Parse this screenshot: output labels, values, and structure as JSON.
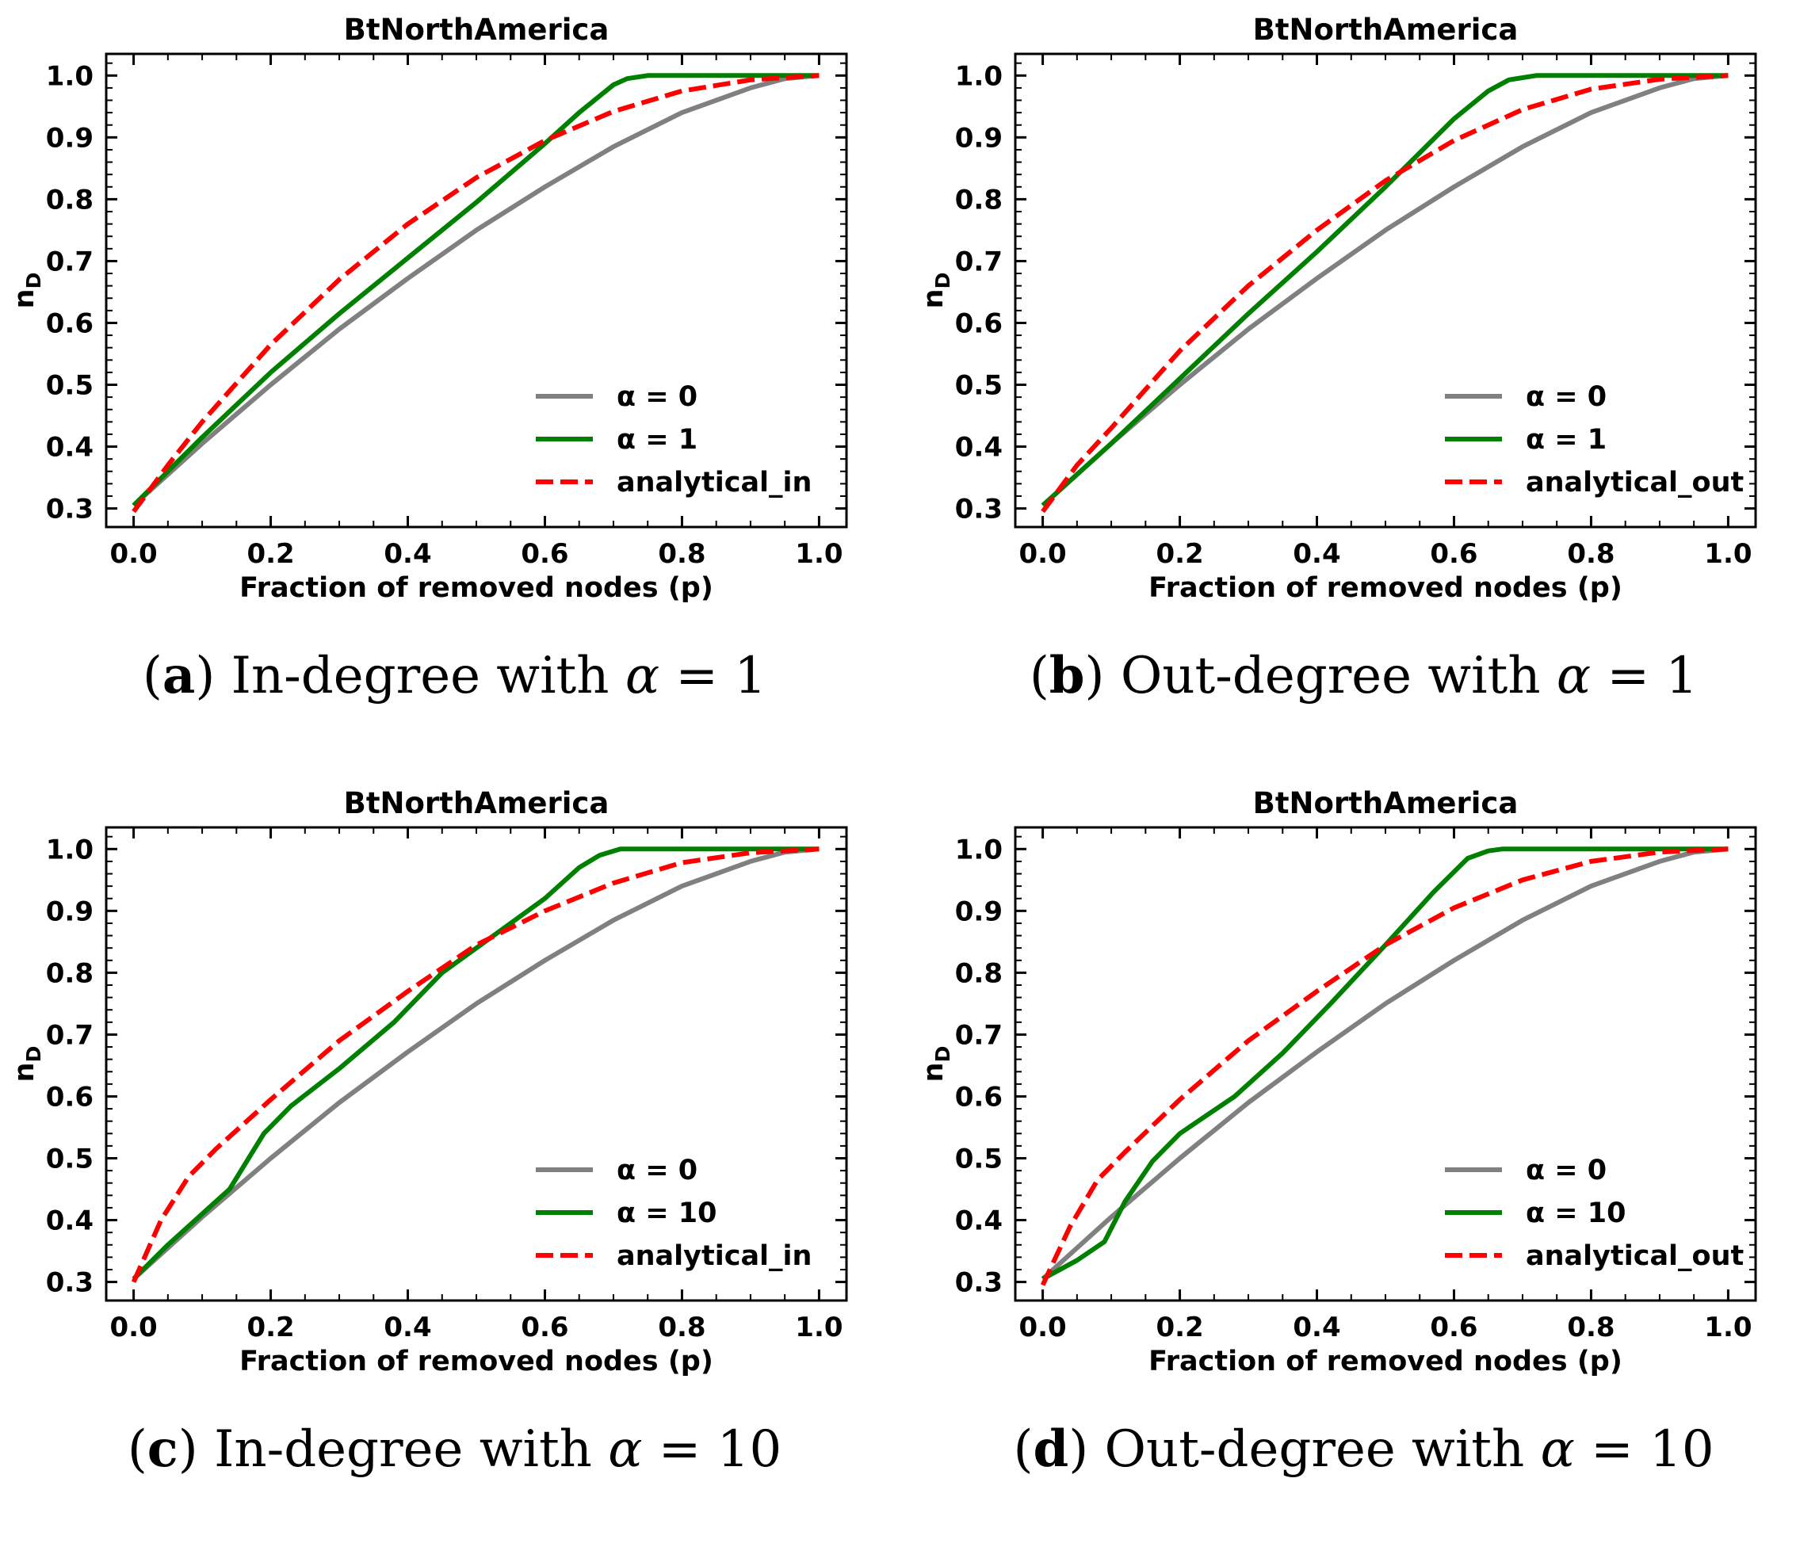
{
  "chart_data": [
    {
      "id": "a",
      "type": "line",
      "title": "BtNorthAmerica",
      "xlabel": "Fraction of removed nodes (p)",
      "ylabel": "n_D",
      "ylabel_main": "n",
      "ylabel_sub": "D",
      "xlim": [
        -0.04,
        1.04
      ],
      "ylim": [
        0.27,
        1.035
      ],
      "xticks": [
        0.0,
        0.2,
        0.4,
        0.6,
        0.8,
        1.0
      ],
      "xtick_labels": [
        "0.0",
        "0.2",
        "0.4",
        "0.6",
        "0.8",
        "1.0"
      ],
      "yticks": [
        0.3,
        0.4,
        0.5,
        0.6,
        0.7,
        0.8,
        0.9,
        1.0
      ],
      "ytick_labels": [
        "0.3",
        "0.4",
        "0.5",
        "0.6",
        "0.7",
        "0.8",
        "0.9",
        "1.0"
      ],
      "legend_position": "lower-right",
      "series": [
        {
          "name": "α = 0",
          "color": "#808080",
          "dash": "solid",
          "x": [
            0.0,
            0.1,
            0.2,
            0.3,
            0.4,
            0.5,
            0.6,
            0.7,
            0.8,
            0.9,
            0.95,
            1.0
          ],
          "y": [
            0.305,
            0.405,
            0.5,
            0.59,
            0.672,
            0.75,
            0.82,
            0.885,
            0.94,
            0.98,
            0.995,
            1.0
          ]
        },
        {
          "name": "α = 1",
          "color": "#008000",
          "dash": "solid",
          "x": [
            0.0,
            0.1,
            0.2,
            0.3,
            0.4,
            0.5,
            0.6,
            0.65,
            0.7,
            0.72,
            0.75,
            0.8,
            1.0
          ],
          "y": [
            0.305,
            0.415,
            0.52,
            0.615,
            0.705,
            0.795,
            0.89,
            0.94,
            0.985,
            0.995,
            1.0,
            1.0,
            1.0
          ]
        },
        {
          "name": "analytical_in",
          "color": "#ff0000",
          "dash": "dashed",
          "x": [
            0.0,
            0.05,
            0.1,
            0.2,
            0.3,
            0.4,
            0.5,
            0.6,
            0.7,
            0.8,
            0.9,
            1.0
          ],
          "y": [
            0.295,
            0.37,
            0.44,
            0.565,
            0.67,
            0.76,
            0.835,
            0.895,
            0.942,
            0.975,
            0.993,
            1.0
          ]
        }
      ]
    },
    {
      "id": "b",
      "type": "line",
      "title": "BtNorthAmerica",
      "xlabel": "Fraction of removed nodes (p)",
      "ylabel": "n_D",
      "ylabel_main": "n",
      "ylabel_sub": "D",
      "xlim": [
        -0.04,
        1.04
      ],
      "ylim": [
        0.27,
        1.035
      ],
      "xticks": [
        0.0,
        0.2,
        0.4,
        0.6,
        0.8,
        1.0
      ],
      "xtick_labels": [
        "0.0",
        "0.2",
        "0.4",
        "0.6",
        "0.8",
        "1.0"
      ],
      "yticks": [
        0.3,
        0.4,
        0.5,
        0.6,
        0.7,
        0.8,
        0.9,
        1.0
      ],
      "ytick_labels": [
        "0.3",
        "0.4",
        "0.5",
        "0.6",
        "0.7",
        "0.8",
        "0.9",
        "1.0"
      ],
      "legend_position": "lower-right",
      "series": [
        {
          "name": "α = 0",
          "color": "#808080",
          "dash": "solid",
          "x": [
            0.0,
            0.1,
            0.2,
            0.3,
            0.4,
            0.5,
            0.6,
            0.7,
            0.8,
            0.9,
            0.95,
            1.0
          ],
          "y": [
            0.305,
            0.405,
            0.5,
            0.59,
            0.672,
            0.75,
            0.82,
            0.885,
            0.94,
            0.98,
            0.995,
            1.0
          ]
        },
        {
          "name": "α = 1",
          "color": "#008000",
          "dash": "solid",
          "x": [
            0.0,
            0.1,
            0.2,
            0.3,
            0.4,
            0.5,
            0.6,
            0.65,
            0.68,
            0.72,
            0.8,
            1.0
          ],
          "y": [
            0.305,
            0.405,
            0.51,
            0.615,
            0.715,
            0.82,
            0.93,
            0.975,
            0.993,
            1.0,
            1.0,
            1.0
          ]
        },
        {
          "name": "analytical_out",
          "color": "#ff0000",
          "dash": "dashed",
          "x": [
            0.0,
            0.05,
            0.1,
            0.2,
            0.3,
            0.4,
            0.5,
            0.6,
            0.7,
            0.8,
            0.9,
            1.0
          ],
          "y": [
            0.295,
            0.37,
            0.43,
            0.555,
            0.66,
            0.75,
            0.83,
            0.895,
            0.945,
            0.978,
            0.994,
            1.0
          ]
        }
      ]
    },
    {
      "id": "c",
      "type": "line",
      "title": "BtNorthAmerica",
      "xlabel": "Fraction of removed nodes (p)",
      "ylabel": "n_D",
      "ylabel_main": "n",
      "ylabel_sub": "D",
      "xlim": [
        -0.04,
        1.04
      ],
      "ylim": [
        0.27,
        1.035
      ],
      "xticks": [
        0.0,
        0.2,
        0.4,
        0.6,
        0.8,
        1.0
      ],
      "xtick_labels": [
        "0.0",
        "0.2",
        "0.4",
        "0.6",
        "0.8",
        "1.0"
      ],
      "yticks": [
        0.3,
        0.4,
        0.5,
        0.6,
        0.7,
        0.8,
        0.9,
        1.0
      ],
      "ytick_labels": [
        "0.3",
        "0.4",
        "0.5",
        "0.6",
        "0.7",
        "0.8",
        "0.9",
        "1.0"
      ],
      "legend_position": "lower-right",
      "series": [
        {
          "name": "α = 0",
          "color": "#808080",
          "dash": "solid",
          "x": [
            0.0,
            0.1,
            0.2,
            0.3,
            0.4,
            0.5,
            0.6,
            0.7,
            0.8,
            0.9,
            0.95,
            1.0
          ],
          "y": [
            0.305,
            0.405,
            0.5,
            0.59,
            0.672,
            0.75,
            0.82,
            0.885,
            0.94,
            0.98,
            0.995,
            1.0
          ]
        },
        {
          "name": "α = 10",
          "color": "#008000",
          "dash": "solid",
          "x": [
            0.0,
            0.05,
            0.1,
            0.14,
            0.19,
            0.23,
            0.3,
            0.38,
            0.45,
            0.55,
            0.6,
            0.65,
            0.68,
            0.71,
            0.8,
            1.0
          ],
          "y": [
            0.305,
            0.36,
            0.41,
            0.45,
            0.54,
            0.585,
            0.645,
            0.72,
            0.8,
            0.88,
            0.92,
            0.97,
            0.99,
            1.0,
            1.0,
            1.0
          ]
        },
        {
          "name": "analytical_in",
          "color": "#ff0000",
          "dash": "dashed",
          "x": [
            0.0,
            0.04,
            0.08,
            0.12,
            0.2,
            0.3,
            0.4,
            0.5,
            0.6,
            0.7,
            0.8,
            0.9,
            1.0
          ],
          "y": [
            0.3,
            0.4,
            0.47,
            0.515,
            0.595,
            0.69,
            0.77,
            0.845,
            0.9,
            0.945,
            0.978,
            0.994,
            1.0
          ]
        }
      ]
    },
    {
      "id": "d",
      "type": "line",
      "title": "BtNorthAmerica",
      "xlabel": "Fraction of removed nodes (p)",
      "ylabel": "n_D",
      "ylabel_main": "n",
      "ylabel_sub": "D",
      "xlim": [
        -0.04,
        1.04
      ],
      "ylim": [
        0.27,
        1.035
      ],
      "xticks": [
        0.0,
        0.2,
        0.4,
        0.6,
        0.8,
        1.0
      ],
      "xtick_labels": [
        "0.0",
        "0.2",
        "0.4",
        "0.6",
        "0.8",
        "1.0"
      ],
      "yticks": [
        0.3,
        0.4,
        0.5,
        0.6,
        0.7,
        0.8,
        0.9,
        1.0
      ],
      "ytick_labels": [
        "0.3",
        "0.4",
        "0.5",
        "0.6",
        "0.7",
        "0.8",
        "0.9",
        "1.0"
      ],
      "legend_position": "lower-right",
      "series": [
        {
          "name": "α = 0",
          "color": "#808080",
          "dash": "solid",
          "x": [
            0.0,
            0.1,
            0.2,
            0.3,
            0.4,
            0.5,
            0.6,
            0.7,
            0.8,
            0.9,
            0.95,
            1.0
          ],
          "y": [
            0.305,
            0.405,
            0.5,
            0.59,
            0.672,
            0.75,
            0.82,
            0.885,
            0.94,
            0.98,
            0.995,
            1.0
          ]
        },
        {
          "name": "α = 10",
          "color": "#008000",
          "dash": "solid",
          "x": [
            0.0,
            0.05,
            0.09,
            0.12,
            0.16,
            0.2,
            0.24,
            0.28,
            0.35,
            0.42,
            0.5,
            0.57,
            0.62,
            0.65,
            0.67,
            0.8,
            1.0
          ],
          "y": [
            0.305,
            0.335,
            0.365,
            0.43,
            0.495,
            0.54,
            0.57,
            0.6,
            0.67,
            0.75,
            0.845,
            0.93,
            0.985,
            0.997,
            1.0,
            1.0,
            1.0
          ]
        },
        {
          "name": "analytical_out",
          "color": "#ff0000",
          "dash": "dashed",
          "x": [
            0.0,
            0.04,
            0.08,
            0.12,
            0.2,
            0.3,
            0.4,
            0.5,
            0.6,
            0.7,
            0.8,
            0.9,
            1.0
          ],
          "y": [
            0.295,
            0.39,
            0.465,
            0.51,
            0.595,
            0.69,
            0.77,
            0.845,
            0.905,
            0.95,
            0.98,
            0.995,
            1.0
          ]
        }
      ]
    }
  ],
  "captions": [
    {
      "letter": "a",
      "text": "In-degree with",
      "alpha": "α",
      "rest": " = 1"
    },
    {
      "letter": "b",
      "text": "Out-degree with",
      "alpha": "α",
      "rest": " = 1"
    },
    {
      "letter": "c",
      "text": "In-degree with",
      "alpha": "α",
      "rest": " = 10"
    },
    {
      "letter": "d",
      "text": "Out-degree with",
      "alpha": "α",
      "rest": " = 10"
    }
  ]
}
